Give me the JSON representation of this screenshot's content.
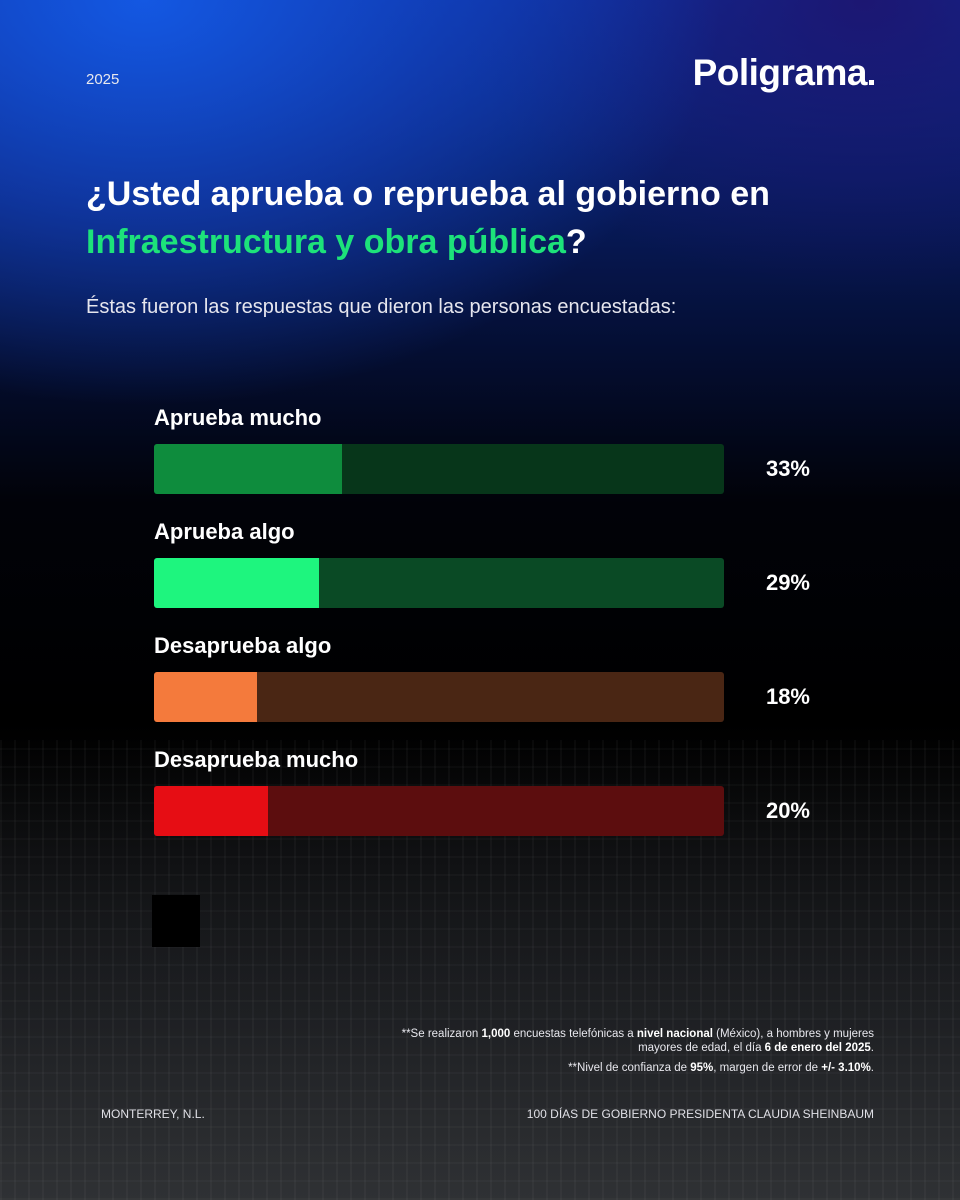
{
  "header": {
    "year": "2025",
    "logo": "Poligrama"
  },
  "title": {
    "part1": "¿Usted aprueba o reprueba al gobierno en",
    "highlight": "Infraestructura y obra pública",
    "end": "?"
  },
  "subtitle": "Éstas fueron las respuestas que dieron las personas encuestadas:",
  "chart_data": {
    "type": "bar",
    "orientation": "horizontal",
    "categories": [
      "Aprueba mucho",
      "Aprueba algo",
      "Desaprueba algo",
      "Desaprueba mucho"
    ],
    "values": [
      33,
      29,
      18,
      20
    ],
    "value_labels": [
      "33%",
      "29%",
      "18%",
      "20%"
    ],
    "xlim": [
      0,
      100
    ],
    "grid": false,
    "colors": {
      "fill": [
        "#0e8c3d",
        "#1ef57e",
        "#f47a3c",
        "#e60d14"
      ],
      "track": [
        "#07361a",
        "#0a4a25",
        "#4a2614",
        "#5c0d0e"
      ]
    }
  },
  "notes": {
    "n1_prefix": "**Se realizaron ",
    "n1_count": "1,000",
    "n1_mid": " encuestas telefónicas a ",
    "n1_scope": "nivel nacional",
    "n1_mid2": " (México), a hombres y mujeres mayores de edad, el día ",
    "n1_date": "6 de enero del 2025",
    "n1_end": ".",
    "n2_prefix": "**Nivel de confianza de ",
    "n2_conf": "95%",
    "n2_mid": ", margen de error de ",
    "n2_err": "+/- 3.10%",
    "n2_end": "."
  },
  "footer": {
    "left": "MONTERREY, N.L.",
    "right": "100 DÍAS DE GOBIERNO PRESIDENTA CLAUDIA SHEINBAUM"
  }
}
